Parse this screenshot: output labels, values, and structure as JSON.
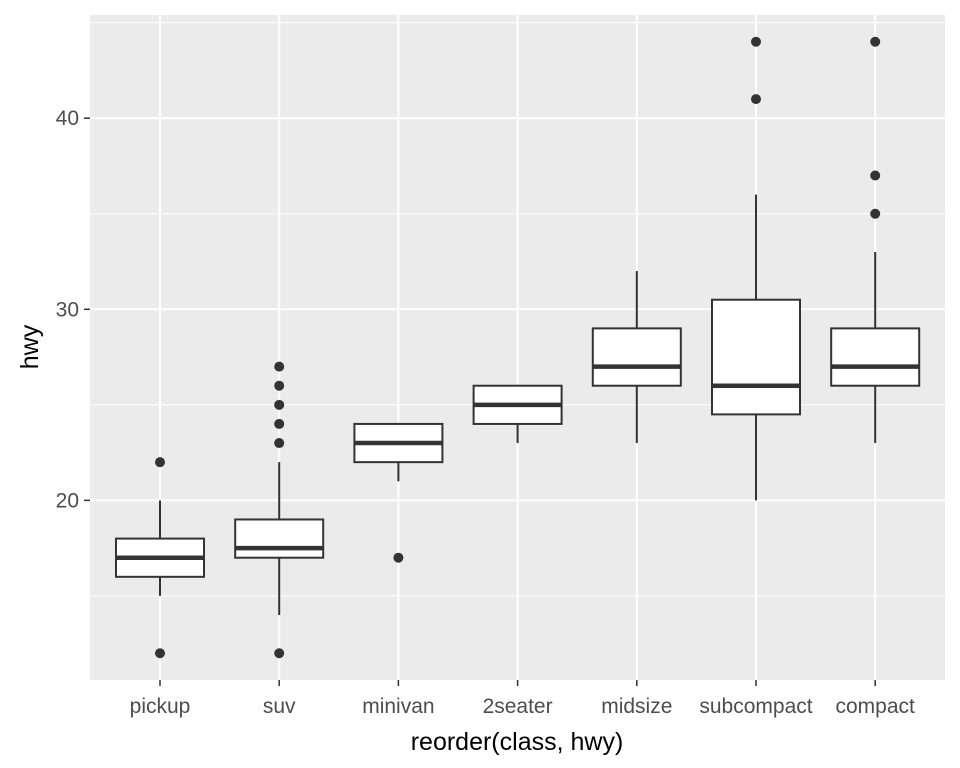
{
  "chart_data": {
    "type": "boxplot",
    "title": "",
    "xlabel": "reorder(class, hwy)",
    "ylabel": "hwy",
    "ylim": [
      10.6,
      45.4
    ],
    "y_ticks": [
      20,
      30,
      40
    ],
    "y_tick_labels": [
      "20",
      "30",
      "40"
    ],
    "grid": true,
    "colors": {
      "panel": "#ebebeb",
      "grid": "#ffffff",
      "box_fill": "#ffffff",
      "box_stroke": "#333333",
      "outlier": "#333333",
      "tick_text": "#4d4d4d"
    },
    "categories": [
      "pickup",
      "suv",
      "minivan",
      "2seater",
      "midsize",
      "subcompact",
      "compact"
    ],
    "boxes": [
      {
        "category": "pickup",
        "lower_whisker": 15,
        "q1": 16,
        "median": 17,
        "q3": 18,
        "upper_whisker": 20,
        "outliers": [
          12,
          22
        ]
      },
      {
        "category": "suv",
        "lower_whisker": 14,
        "q1": 17,
        "median": 17.5,
        "q3": 19,
        "upper_whisker": 22,
        "outliers": [
          12,
          23,
          24,
          25,
          26,
          27
        ]
      },
      {
        "category": "minivan",
        "lower_whisker": 21,
        "q1": 22,
        "median": 23,
        "q3": 24,
        "upper_whisker": 24,
        "outliers": [
          17
        ]
      },
      {
        "category": "2seater",
        "lower_whisker": 23,
        "q1": 24,
        "median": 25,
        "q3": 26,
        "upper_whisker": 26,
        "outliers": []
      },
      {
        "category": "midsize",
        "lower_whisker": 23,
        "q1": 26,
        "median": 27,
        "q3": 29,
        "upper_whisker": 32,
        "outliers": []
      },
      {
        "category": "subcompact",
        "lower_whisker": 20,
        "q1": 24.5,
        "median": 26,
        "q3": 30.5,
        "upper_whisker": 36,
        "outliers": [
          41,
          44
        ]
      },
      {
        "category": "compact",
        "lower_whisker": 23,
        "q1": 26,
        "median": 27,
        "q3": 29,
        "upper_whisker": 33,
        "outliers": [
          35,
          37,
          44
        ]
      }
    ]
  }
}
